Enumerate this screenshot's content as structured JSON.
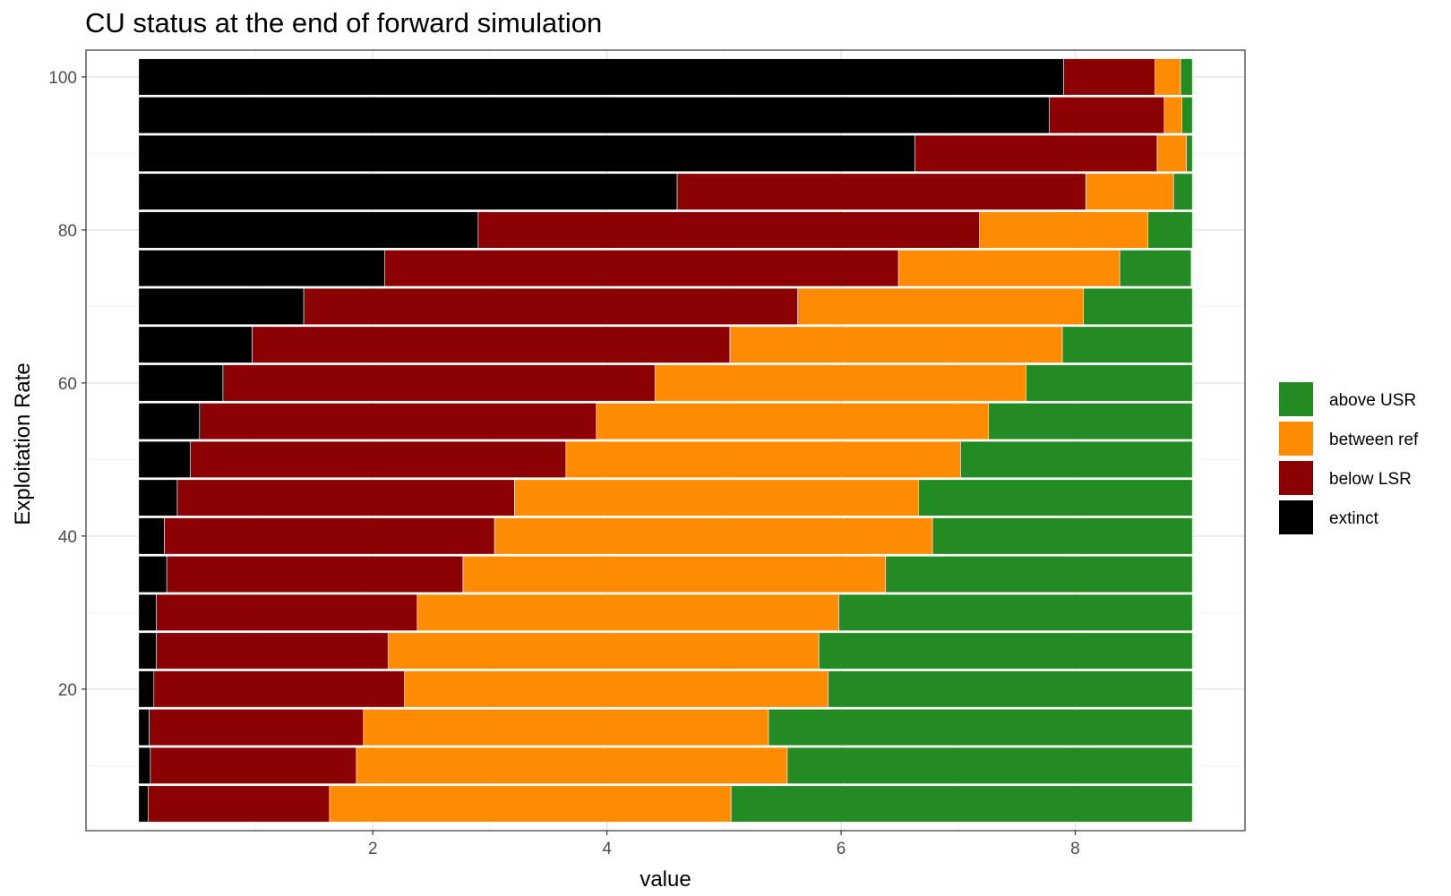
{
  "chart_data": {
    "type": "bar",
    "orientation": "horizontal",
    "stacked": true,
    "title": "CU status at the end of forward simulation",
    "xlabel": "value",
    "ylabel": "Exploitation Rate",
    "xlim": [
      -0.45,
      9.45
    ],
    "ylim": [
      1.5,
      103.5
    ],
    "x_ticks": [
      2,
      4,
      6,
      8
    ],
    "y_ticks": [
      20,
      40,
      60,
      80,
      100
    ],
    "x_tick_labels": [
      "2",
      "4",
      "6",
      "8"
    ],
    "y_tick_labels": [
      "20",
      "40",
      "60",
      "80",
      "100"
    ],
    "grid": true,
    "legend_position": "right",
    "categories": [
      5,
      10,
      15,
      20,
      25,
      30,
      35,
      40,
      45,
      50,
      55,
      60,
      65,
      70,
      75,
      80,
      85,
      90,
      95,
      100
    ],
    "series": [
      {
        "name": "extinct",
        "color": "#000000",
        "values": [
          0.08,
          0.1,
          0.09,
          0.13,
          0.15,
          0.15,
          0.24,
          0.22,
          0.33,
          0.44,
          0.52,
          0.72,
          0.97,
          1.41,
          2.1,
          2.9,
          4.6,
          6.63,
          7.78,
          7.9
        ]
      },
      {
        "name": "below LSR",
        "color": "#8b0000",
        "values": [
          1.55,
          1.76,
          1.83,
          2.14,
          1.98,
          2.23,
          2.53,
          2.82,
          2.88,
          3.21,
          3.39,
          3.69,
          4.08,
          4.22,
          4.39,
          4.28,
          3.49,
          2.07,
          0.98,
          0.78
        ]
      },
      {
        "name": "between ref",
        "color": "#ff8c00",
        "values": [
          3.43,
          3.68,
          3.46,
          3.62,
          3.68,
          3.6,
          3.61,
          3.74,
          3.45,
          3.37,
          3.35,
          3.17,
          2.84,
          2.44,
          1.89,
          1.44,
          0.75,
          0.25,
          0.15,
          0.22
        ]
      },
      {
        "name": "above USR",
        "color": "#228b22",
        "values": [
          3.94,
          3.46,
          3.62,
          3.11,
          3.19,
          3.02,
          2.62,
          2.22,
          2.34,
          1.98,
          1.74,
          1.42,
          1.11,
          0.93,
          0.61,
          0.38,
          0.16,
          0.05,
          0.09,
          0.1
        ]
      }
    ],
    "legend": [
      {
        "name": "above USR",
        "color": "#228b22"
      },
      {
        "name": "between ref",
        "color": "#ff8c00"
      },
      {
        "name": "below LSR",
        "color": "#8b0000"
      },
      {
        "name": "extinct",
        "color": "#000000"
      }
    ]
  }
}
